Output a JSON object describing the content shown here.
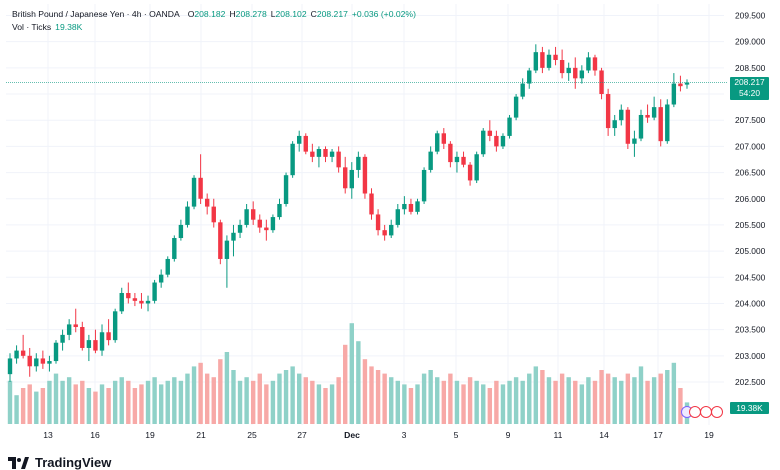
{
  "header": {
    "symbol": "British Pound / Japanese Yen · 4h · OANDA",
    "open_label": "O",
    "open": "208.182",
    "high_label": "H",
    "high": "208.278",
    "low_label": "L",
    "low": "208.102",
    "close_label": "C",
    "close": "208.217",
    "change": "+0.036 (+0.02%)"
  },
  "volume_legend": {
    "label": "Vol · Ticks",
    "value": "19.38K"
  },
  "price_tag": {
    "price": "208.217",
    "countdown": "54:20"
  },
  "volume_tag": "19.38K",
  "branding": "TradingView",
  "colors": {
    "up": "#089981",
    "down": "#f23645",
    "up_vol": "#8fd1c8",
    "down_vol": "#f7a9a7",
    "grid": "#f0f3fa",
    "axis_text": "#131722"
  },
  "chart_data": {
    "type": "candlestick",
    "title": "British Pound / Japanese Yen · 4h · OANDA",
    "ylim": [
      202.25,
      209.6
    ],
    "y_ticks": [
      "209.500",
      "209.000",
      "208.500",
      "208.000",
      "207.500",
      "207.000",
      "206.500",
      "206.000",
      "205.500",
      "205.000",
      "204.500",
      "204.000",
      "203.500",
      "203.000",
      "202.500"
    ],
    "x_ticks": [
      "13",
      "16",
      "19",
      "21",
      "25",
      "27",
      "Dec",
      "3",
      "5",
      "9",
      "11",
      "14",
      "17",
      "19"
    ],
    "current_price": 208.217,
    "volume_unit": "ticks",
    "candles": [
      {
        "o": 202.65,
        "h": 203.05,
        "l": 202.5,
        "c": 202.95,
        "v": 12
      },
      {
        "o": 202.95,
        "h": 203.2,
        "l": 202.85,
        "c": 203.1,
        "v": 8
      },
      {
        "o": 203.1,
        "h": 203.4,
        "l": 202.95,
        "c": 203.0,
        "v": 10
      },
      {
        "o": 203.0,
        "h": 203.15,
        "l": 202.6,
        "c": 202.8,
        "v": 11
      },
      {
        "o": 202.8,
        "h": 203.05,
        "l": 202.7,
        "c": 202.95,
        "v": 9
      },
      {
        "o": 202.95,
        "h": 203.1,
        "l": 202.75,
        "c": 202.85,
        "v": 10
      },
      {
        "o": 202.85,
        "h": 203.0,
        "l": 202.7,
        "c": 202.9,
        "v": 12
      },
      {
        "o": 202.9,
        "h": 203.3,
        "l": 202.85,
        "c": 203.25,
        "v": 14
      },
      {
        "o": 203.25,
        "h": 203.5,
        "l": 203.1,
        "c": 203.4,
        "v": 12
      },
      {
        "o": 203.4,
        "h": 203.7,
        "l": 203.3,
        "c": 203.6,
        "v": 13
      },
      {
        "o": 203.6,
        "h": 203.9,
        "l": 203.45,
        "c": 203.55,
        "v": 11
      },
      {
        "o": 203.55,
        "h": 203.65,
        "l": 203.1,
        "c": 203.15,
        "v": 12
      },
      {
        "o": 203.15,
        "h": 203.4,
        "l": 202.9,
        "c": 203.3,
        "v": 10
      },
      {
        "o": 203.3,
        "h": 203.5,
        "l": 203.05,
        "c": 203.1,
        "v": 9
      },
      {
        "o": 203.1,
        "h": 203.6,
        "l": 203.0,
        "c": 203.45,
        "v": 11
      },
      {
        "o": 203.45,
        "h": 203.7,
        "l": 203.2,
        "c": 203.3,
        "v": 10
      },
      {
        "o": 203.3,
        "h": 203.9,
        "l": 203.25,
        "c": 203.85,
        "v": 12
      },
      {
        "o": 203.85,
        "h": 204.3,
        "l": 203.8,
        "c": 204.2,
        "v": 13
      },
      {
        "o": 204.2,
        "h": 204.4,
        "l": 204.0,
        "c": 204.1,
        "v": 12
      },
      {
        "o": 204.1,
        "h": 204.2,
        "l": 203.95,
        "c": 204.05,
        "v": 10
      },
      {
        "o": 204.05,
        "h": 204.2,
        "l": 203.9,
        "c": 204.0,
        "v": 11
      },
      {
        "o": 204.0,
        "h": 204.15,
        "l": 203.85,
        "c": 204.05,
        "v": 12
      },
      {
        "o": 204.05,
        "h": 204.45,
        "l": 204.0,
        "c": 204.4,
        "v": 13
      },
      {
        "o": 204.4,
        "h": 204.65,
        "l": 204.3,
        "c": 204.55,
        "v": 11
      },
      {
        "o": 204.55,
        "h": 204.9,
        "l": 204.5,
        "c": 204.85,
        "v": 12
      },
      {
        "o": 204.85,
        "h": 205.3,
        "l": 204.8,
        "c": 205.25,
        "v": 13
      },
      {
        "o": 205.25,
        "h": 205.6,
        "l": 205.2,
        "c": 205.5,
        "v": 12
      },
      {
        "o": 205.5,
        "h": 205.95,
        "l": 205.45,
        "c": 205.85,
        "v": 14
      },
      {
        "o": 205.85,
        "h": 206.45,
        "l": 205.8,
        "c": 206.4,
        "v": 16
      },
      {
        "o": 206.4,
        "h": 206.85,
        "l": 205.9,
        "c": 206.0,
        "v": 17
      },
      {
        "o": 206.0,
        "h": 206.1,
        "l": 205.7,
        "c": 205.85,
        "v": 14
      },
      {
        "o": 205.85,
        "h": 206.0,
        "l": 205.45,
        "c": 205.55,
        "v": 13
      },
      {
        "o": 205.55,
        "h": 205.6,
        "l": 204.75,
        "c": 204.85,
        "v": 18
      },
      {
        "o": 204.85,
        "h": 205.3,
        "l": 204.3,
        "c": 205.2,
        "v": 20
      },
      {
        "o": 205.2,
        "h": 205.5,
        "l": 204.9,
        "c": 205.35,
        "v": 15
      },
      {
        "o": 205.35,
        "h": 205.6,
        "l": 205.25,
        "c": 205.5,
        "v": 12
      },
      {
        "o": 205.5,
        "h": 205.9,
        "l": 205.45,
        "c": 205.8,
        "v": 13
      },
      {
        "o": 205.8,
        "h": 205.95,
        "l": 205.5,
        "c": 205.6,
        "v": 12
      },
      {
        "o": 205.6,
        "h": 205.7,
        "l": 205.35,
        "c": 205.45,
        "v": 14
      },
      {
        "o": 205.45,
        "h": 205.6,
        "l": 205.2,
        "c": 205.4,
        "v": 11
      },
      {
        "o": 205.4,
        "h": 205.7,
        "l": 205.35,
        "c": 205.65,
        "v": 12
      },
      {
        "o": 205.65,
        "h": 206.0,
        "l": 205.6,
        "c": 205.9,
        "v": 14
      },
      {
        "o": 205.9,
        "h": 206.5,
        "l": 205.85,
        "c": 206.45,
        "v": 15
      },
      {
        "o": 206.45,
        "h": 207.1,
        "l": 206.4,
        "c": 207.05,
        "v": 16
      },
      {
        "o": 207.05,
        "h": 207.3,
        "l": 206.9,
        "c": 207.2,
        "v": 14
      },
      {
        "o": 207.2,
        "h": 207.25,
        "l": 206.85,
        "c": 206.9,
        "v": 13
      },
      {
        "o": 206.9,
        "h": 207.05,
        "l": 206.7,
        "c": 206.8,
        "v": 12
      },
      {
        "o": 206.8,
        "h": 207.0,
        "l": 206.6,
        "c": 206.95,
        "v": 11
      },
      {
        "o": 206.95,
        "h": 207.0,
        "l": 206.7,
        "c": 206.8,
        "v": 10
      },
      {
        "o": 206.8,
        "h": 206.95,
        "l": 206.7,
        "c": 206.9,
        "v": 11
      },
      {
        "o": 206.9,
        "h": 207.0,
        "l": 206.5,
        "c": 206.6,
        "v": 13
      },
      {
        "o": 206.6,
        "h": 206.8,
        "l": 206.1,
        "c": 206.2,
        "v": 22
      },
      {
        "o": 206.2,
        "h": 206.7,
        "l": 206.0,
        "c": 206.55,
        "v": 28
      },
      {
        "o": 206.55,
        "h": 206.9,
        "l": 206.4,
        "c": 206.8,
        "v": 23
      },
      {
        "o": 206.8,
        "h": 206.85,
        "l": 206.0,
        "c": 206.1,
        "v": 18
      },
      {
        "o": 206.1,
        "h": 206.2,
        "l": 205.6,
        "c": 205.7,
        "v": 16
      },
      {
        "o": 205.7,
        "h": 205.8,
        "l": 205.3,
        "c": 205.4,
        "v": 15
      },
      {
        "o": 205.4,
        "h": 205.5,
        "l": 205.2,
        "c": 205.3,
        "v": 14
      },
      {
        "o": 205.3,
        "h": 205.6,
        "l": 205.25,
        "c": 205.5,
        "v": 13
      },
      {
        "o": 205.5,
        "h": 205.9,
        "l": 205.45,
        "c": 205.8,
        "v": 12
      },
      {
        "o": 205.8,
        "h": 206.05,
        "l": 205.7,
        "c": 205.9,
        "v": 11
      },
      {
        "o": 205.9,
        "h": 206.0,
        "l": 205.7,
        "c": 205.75,
        "v": 10
      },
      {
        "o": 205.75,
        "h": 206.0,
        "l": 205.7,
        "c": 205.95,
        "v": 11
      },
      {
        "o": 205.95,
        "h": 206.6,
        "l": 205.9,
        "c": 206.55,
        "v": 14
      },
      {
        "o": 206.55,
        "h": 207.0,
        "l": 206.5,
        "c": 206.9,
        "v": 15
      },
      {
        "o": 206.9,
        "h": 207.3,
        "l": 206.85,
        "c": 207.25,
        "v": 13
      },
      {
        "o": 207.25,
        "h": 207.35,
        "l": 206.95,
        "c": 207.05,
        "v": 12
      },
      {
        "o": 207.05,
        "h": 207.1,
        "l": 206.6,
        "c": 206.7,
        "v": 14
      },
      {
        "o": 206.7,
        "h": 206.9,
        "l": 206.5,
        "c": 206.8,
        "v": 12
      },
      {
        "o": 206.8,
        "h": 206.9,
        "l": 206.6,
        "c": 206.65,
        "v": 11
      },
      {
        "o": 206.65,
        "h": 206.7,
        "l": 206.25,
        "c": 206.35,
        "v": 13
      },
      {
        "o": 206.35,
        "h": 206.9,
        "l": 206.3,
        "c": 206.85,
        "v": 12
      },
      {
        "o": 206.85,
        "h": 207.35,
        "l": 206.8,
        "c": 207.3,
        "v": 11
      },
      {
        "o": 207.3,
        "h": 207.5,
        "l": 207.1,
        "c": 207.2,
        "v": 10
      },
      {
        "o": 207.2,
        "h": 207.3,
        "l": 206.9,
        "c": 207.0,
        "v": 12
      },
      {
        "o": 207.0,
        "h": 207.25,
        "l": 206.95,
        "c": 207.2,
        "v": 11
      },
      {
        "o": 207.2,
        "h": 207.6,
        "l": 207.15,
        "c": 207.55,
        "v": 12
      },
      {
        "o": 207.55,
        "h": 208.0,
        "l": 207.5,
        "c": 207.95,
        "v": 13
      },
      {
        "o": 207.95,
        "h": 208.3,
        "l": 207.9,
        "c": 208.2,
        "v": 12
      },
      {
        "o": 208.2,
        "h": 208.5,
        "l": 208.1,
        "c": 208.45,
        "v": 14
      },
      {
        "o": 208.45,
        "h": 208.95,
        "l": 208.4,
        "c": 208.8,
        "v": 16
      },
      {
        "o": 208.8,
        "h": 208.9,
        "l": 208.4,
        "c": 208.5,
        "v": 15
      },
      {
        "o": 208.5,
        "h": 208.85,
        "l": 208.45,
        "c": 208.75,
        "v": 13
      },
      {
        "o": 208.75,
        "h": 208.9,
        "l": 208.55,
        "c": 208.65,
        "v": 12
      },
      {
        "o": 208.65,
        "h": 208.85,
        "l": 208.3,
        "c": 208.4,
        "v": 14
      },
      {
        "o": 208.4,
        "h": 208.6,
        "l": 208.25,
        "c": 208.5,
        "v": 13
      },
      {
        "o": 208.5,
        "h": 208.7,
        "l": 208.1,
        "c": 208.3,
        "v": 12
      },
      {
        "o": 208.3,
        "h": 208.55,
        "l": 208.2,
        "c": 208.45,
        "v": 11
      },
      {
        "o": 208.45,
        "h": 208.8,
        "l": 208.4,
        "c": 208.7,
        "v": 13
      },
      {
        "o": 208.7,
        "h": 208.75,
        "l": 208.35,
        "c": 208.45,
        "v": 12
      },
      {
        "o": 208.45,
        "h": 208.5,
        "l": 207.9,
        "c": 208.0,
        "v": 15
      },
      {
        "o": 208.0,
        "h": 208.1,
        "l": 207.2,
        "c": 207.35,
        "v": 14
      },
      {
        "o": 207.35,
        "h": 207.6,
        "l": 207.2,
        "c": 207.5,
        "v": 13
      },
      {
        "o": 207.5,
        "h": 207.8,
        "l": 207.4,
        "c": 207.7,
        "v": 12
      },
      {
        "o": 207.7,
        "h": 207.75,
        "l": 206.95,
        "c": 207.05,
        "v": 14
      },
      {
        "o": 207.05,
        "h": 207.3,
        "l": 206.8,
        "c": 207.15,
        "v": 13
      },
      {
        "o": 207.15,
        "h": 207.7,
        "l": 207.1,
        "c": 207.6,
        "v": 16
      },
      {
        "o": 207.6,
        "h": 207.8,
        "l": 207.45,
        "c": 207.55,
        "v": 12
      },
      {
        "o": 207.55,
        "h": 207.95,
        "l": 207.5,
        "c": 207.75,
        "v": 13
      },
      {
        "o": 207.75,
        "h": 207.9,
        "l": 207.0,
        "c": 207.1,
        "v": 14
      },
      {
        "o": 207.1,
        "h": 207.9,
        "l": 207.05,
        "c": 207.8,
        "v": 15
      },
      {
        "o": 207.8,
        "h": 208.4,
        "l": 207.75,
        "c": 208.2,
        "v": 17
      },
      {
        "o": 208.2,
        "h": 208.35,
        "l": 208.05,
        "c": 208.15,
        "v": 10
      },
      {
        "o": 208.18,
        "h": 208.28,
        "l": 208.1,
        "c": 208.22,
        "v": 6
      }
    ]
  }
}
